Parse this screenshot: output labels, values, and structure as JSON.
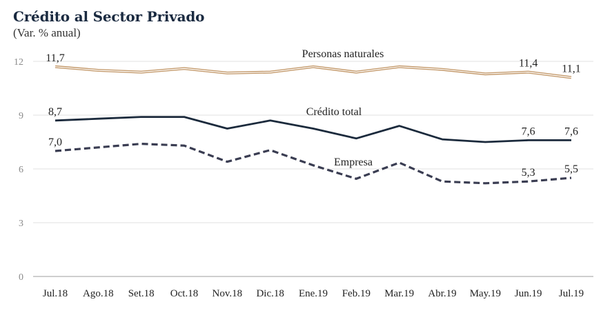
{
  "chart_data": {
    "type": "line",
    "title": "Crédito al Sector Privado",
    "subtitle": "(Var. % anual)",
    "xlabel": "",
    "ylabel": "",
    "ylim": [
      0,
      12
    ],
    "yticks": [
      0,
      3,
      6,
      9,
      12
    ],
    "ytick_labels": [
      "0",
      "3",
      "6",
      "9",
      "12"
    ],
    "grid": true,
    "legend": "inline labels",
    "categories": [
      "Jul.18",
      "Ago.18",
      "Set.18",
      "Oct.18",
      "Nov.18",
      "Dic.18",
      "Ene.19",
      "Feb.19",
      "Mar.19",
      "Abr.19",
      "May.19",
      "Jun.19",
      "Jul.19"
    ],
    "series": [
      {
        "name": "Personas naturales",
        "color": "#c49a6c",
        "style": "double",
        "values": [
          11.7,
          11.5,
          11.4,
          11.6,
          11.35,
          11.4,
          11.7,
          11.4,
          11.7,
          11.55,
          11.3,
          11.4,
          11.1
        ],
        "data_labels": [
          {
            "index": 0,
            "text": "11,7"
          },
          {
            "index": 11,
            "text": "11,4"
          },
          {
            "index": 12,
            "text": "11,1"
          }
        ]
      },
      {
        "name": "Crédito total",
        "color": "#1b2a3c",
        "style": "solid",
        "values": [
          8.7,
          8.8,
          8.9,
          8.9,
          8.25,
          8.7,
          8.25,
          7.7,
          8.4,
          7.65,
          7.5,
          7.6,
          7.6
        ],
        "data_labels": [
          {
            "index": 0,
            "text": "8,7"
          },
          {
            "index": 11,
            "text": "7,6"
          },
          {
            "index": 12,
            "text": "7,6"
          }
        ]
      },
      {
        "name": "Empresa",
        "color": "#3a3d52",
        "style": "dashed",
        "values": [
          7.0,
          7.2,
          7.4,
          7.3,
          6.4,
          7.05,
          6.2,
          5.45,
          6.35,
          5.3,
          5.2,
          5.3,
          5.5
        ],
        "data_labels": [
          {
            "index": 0,
            "text": "7,0"
          },
          {
            "index": 11,
            "text": "5,3"
          },
          {
            "index": 12,
            "text": "5,5"
          }
        ]
      }
    ]
  }
}
